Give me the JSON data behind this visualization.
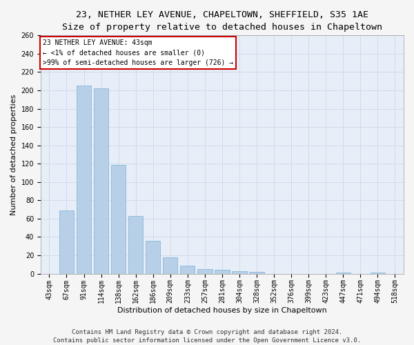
{
  "title_line1": "23, NETHER LEY AVENUE, CHAPELTOWN, SHEFFIELD, S35 1AE",
  "title_line2": "Size of property relative to detached houses in Chapeltown",
  "xlabel": "Distribution of detached houses by size in Chapeltown",
  "ylabel": "Number of detached properties",
  "categories": [
    "43sqm",
    "67sqm",
    "91sqm",
    "114sqm",
    "138sqm",
    "162sqm",
    "186sqm",
    "209sqm",
    "233sqm",
    "257sqm",
    "281sqm",
    "304sqm",
    "328sqm",
    "352sqm",
    "376sqm",
    "399sqm",
    "423sqm",
    "447sqm",
    "471sqm",
    "494sqm",
    "518sqm"
  ],
  "values": [
    0,
    69,
    205,
    202,
    119,
    63,
    36,
    18,
    9,
    5,
    4,
    3,
    2,
    0,
    0,
    0,
    0,
    1,
    0,
    1,
    0
  ],
  "bar_color": "#b8cfe8",
  "bar_edge_color": "#7aafd4",
  "annotation_title": "23 NETHER LEY AVENUE: 43sqm",
  "annotation_line1": "← <1% of detached houses are smaller (0)",
  "annotation_line2": ">99% of semi-detached houses are larger (726) →",
  "annotation_box_color": "#ffffff",
  "annotation_box_edge": "#cc0000",
  "ylim": [
    0,
    260
  ],
  "yticks": [
    0,
    20,
    40,
    60,
    80,
    100,
    120,
    140,
    160,
    180,
    200,
    220,
    240,
    260
  ],
  "footer_line1": "Contains HM Land Registry data © Crown copyright and database right 2024.",
  "footer_line2": "Contains public sector information licensed under the Open Government Licence v3.0.",
  "bg_color": "#f5f5f5",
  "plot_bg_color": "#e8eef8",
  "title_fontsize": 9.5,
  "subtitle_fontsize": 8.5,
  "axis_label_fontsize": 8,
  "tick_fontsize": 7,
  "footer_fontsize": 6.5,
  "annotation_fontsize": 7
}
